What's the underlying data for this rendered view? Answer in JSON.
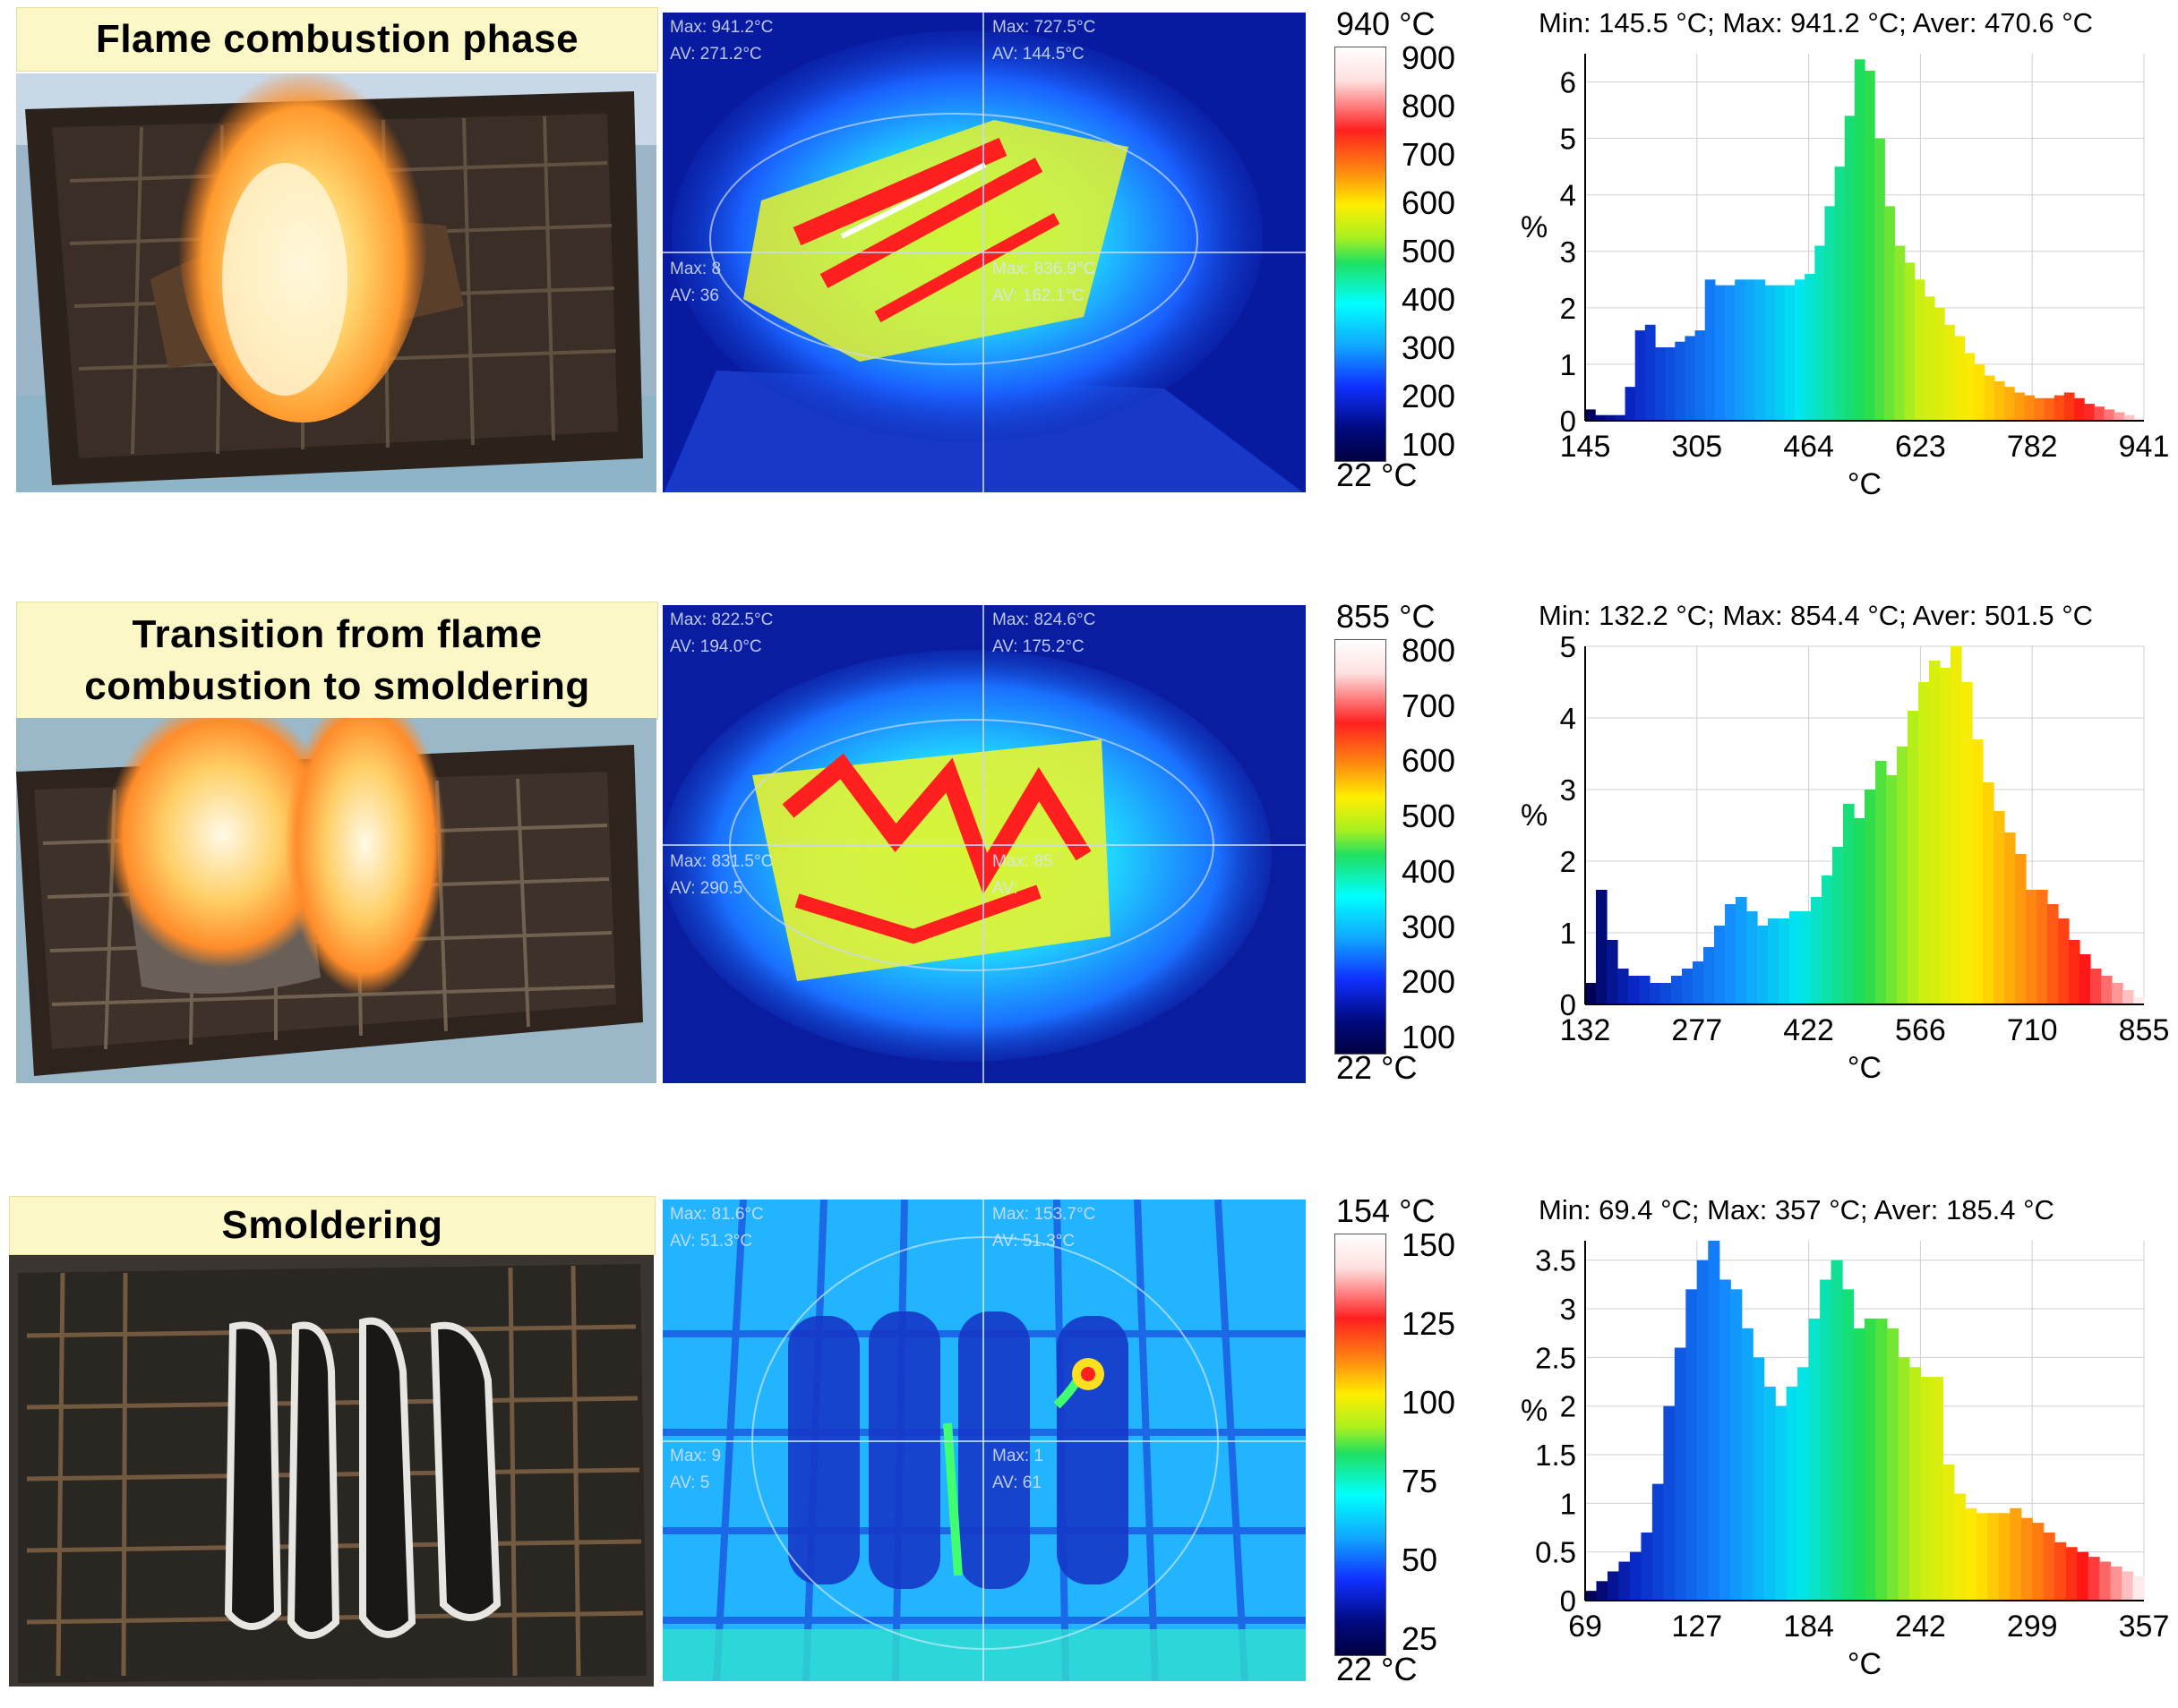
{
  "rows": [
    {
      "title": "Flame combustion phase",
      "overlay": {
        "tl_max": "Max: 941.2°C",
        "tl_av": "AV: 271.2°C",
        "tr_max": "Max: 727.5°C",
        "tr_av": "AV: 144.5°C",
        "bl_max": "Max: 8",
        "bl_av": "AV: 36",
        "br_max": "Max: 836.9°C",
        "br_av": "AV: 162.1°C"
      },
      "scale": {
        "top": "940 °C",
        "bottom": "22 °C",
        "ticks": [
          "900",
          "800",
          "700",
          "600",
          "500",
          "400",
          "300",
          "200",
          "100"
        ]
      },
      "chart_data": {
        "type": "bar",
        "title": "Min: 145.5 °C; Max: 941.2 °C; Aver: 470.6 °C",
        "xlabel": "°C",
        "ylabel": "%",
        "x_ticks": [
          "145",
          "305",
          "464",
          "623",
          "782",
          "941"
        ],
        "y_ticks": [
          "0",
          "1",
          "2",
          "3",
          "4",
          "5",
          "6"
        ],
        "xlim": [
          145,
          941
        ],
        "ylim": [
          0,
          6.5
        ],
        "values": [
          0.2,
          0.1,
          0.1,
          0.1,
          0.6,
          1.6,
          1.7,
          1.3,
          1.3,
          1.4,
          1.5,
          1.6,
          2.5,
          2.4,
          2.4,
          2.5,
          2.5,
          2.5,
          2.4,
          2.4,
          2.4,
          2.5,
          2.6,
          3.1,
          3.8,
          4.5,
          5.4,
          6.4,
          6.2,
          5.0,
          3.8,
          3.1,
          2.8,
          2.5,
          2.2,
          2.0,
          1.7,
          1.5,
          1.2,
          1.0,
          0.8,
          0.7,
          0.6,
          0.5,
          0.45,
          0.4,
          0.4,
          0.45,
          0.5,
          0.4,
          0.3,
          0.25,
          0.2,
          0.15,
          0.1,
          0.05
        ]
      }
    },
    {
      "title": "Transition from flame combustion to smoldering",
      "overlay": {
        "tl_max": "Max: 822.5°C",
        "tl_av": "AV: 194.0°C",
        "tr_max": "Max: 824.6°C",
        "tr_av": "AV: 175.2°C",
        "bl_max": "Max: 831.5°C",
        "bl_av": "AV: 290.5",
        "br_max": "Max: 85",
        "br_av": "AV:"
      },
      "scale": {
        "top": "855 °C",
        "bottom": "22 °C",
        "ticks": [
          "800",
          "700",
          "600",
          "500",
          "400",
          "300",
          "200",
          "100"
        ]
      },
      "chart_data": {
        "type": "bar",
        "title": "Min: 132.2 °C; Max: 854.4 °C; Aver: 501.5 °C",
        "xlabel": "°C",
        "ylabel": "%",
        "x_ticks": [
          "132",
          "277",
          "422",
          "566",
          "710",
          "855"
        ],
        "y_ticks": [
          "0",
          "1",
          "2",
          "3",
          "4",
          "5"
        ],
        "xlim": [
          132,
          855
        ],
        "ylim": [
          0,
          5
        ],
        "values": [
          0.3,
          1.6,
          0.9,
          0.5,
          0.4,
          0.4,
          0.3,
          0.3,
          0.4,
          0.5,
          0.6,
          0.8,
          1.1,
          1.4,
          1.5,
          1.3,
          1.1,
          1.2,
          1.2,
          1.3,
          1.3,
          1.5,
          1.8,
          2.2,
          2.8,
          2.6,
          3.0,
          3.4,
          3.2,
          3.6,
          4.1,
          4.5,
          4.8,
          4.7,
          5.0,
          4.5,
          3.7,
          3.1,
          2.7,
          2.4,
          2.1,
          1.6,
          1.6,
          1.4,
          1.2,
          0.9,
          0.7,
          0.5,
          0.4,
          0.3,
          0.2,
          0.1
        ]
      }
    },
    {
      "title": "Smoldering",
      "overlay": {
        "tl_max": "Max: 81.6°C",
        "tl_av": "AV: 51.3°C",
        "tr_max": "Max: 153.7°C",
        "tr_av": "AV: 51.3°C",
        "bl_max": "Max: 9",
        "bl_av": "AV: 5",
        "br_max": "Max: 1",
        "br_av": "AV: 61"
      },
      "scale": {
        "top": "154 °C",
        "bottom": "22 °C",
        "ticks": [
          "150",
          "125",
          "100",
          "75",
          "50",
          "25"
        ]
      },
      "chart_data": {
        "type": "bar",
        "title": "Min: 69.4 °C; Max: 357 °C; Aver: 185.4 °C",
        "xlabel": "°C",
        "ylabel": "%",
        "x_ticks": [
          "69",
          "127",
          "184",
          "242",
          "299",
          "357"
        ],
        "y_ticks": [
          "0",
          "0.5",
          "1",
          "1.5",
          "2",
          "2.5",
          "3",
          "3.5"
        ],
        "xlim": [
          69,
          357
        ],
        "ylim": [
          0,
          3.7
        ],
        "values": [
          0.1,
          0.2,
          0.3,
          0.4,
          0.5,
          0.7,
          1.2,
          2.0,
          2.6,
          3.2,
          3.5,
          3.7,
          3.3,
          3.2,
          2.8,
          2.5,
          2.2,
          2.0,
          2.2,
          2.4,
          2.9,
          3.3,
          3.5,
          3.2,
          2.8,
          2.9,
          2.9,
          2.8,
          2.5,
          2.4,
          2.3,
          2.3,
          1.4,
          1.1,
          0.95,
          0.9,
          0.9,
          0.9,
          0.95,
          0.85,
          0.8,
          0.7,
          0.6,
          0.55,
          0.5,
          0.45,
          0.4,
          0.35,
          0.3,
          0.25
        ]
      }
    }
  ]
}
